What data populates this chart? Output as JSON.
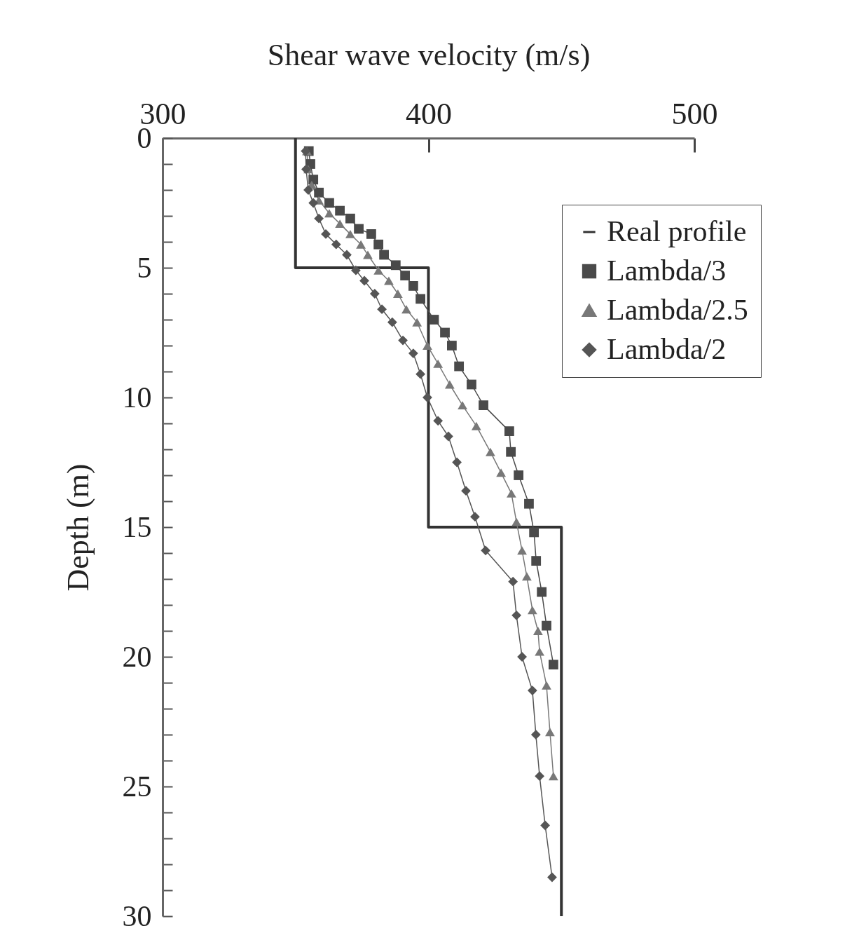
{
  "chart_data": {
    "type": "line",
    "xlabel": "Shear wave velocity (m/s)",
    "ylabel": "Depth (m)",
    "xlim": [
      300,
      500
    ],
    "xticks": [
      300,
      400,
      500
    ],
    "ylim": [
      30,
      0
    ],
    "yticks": [
      0,
      {
        "value": 1,
        "label": null
      },
      {
        "value": 2,
        "label": null
      },
      {
        "value": 3,
        "label": null
      },
      {
        "value": 4,
        "label": null
      },
      5,
      {
        "value": 6,
        "label": null
      },
      {
        "value": 7,
        "label": null
      },
      {
        "value": 8,
        "label": null
      },
      {
        "value": 9,
        "label": null
      },
      10,
      {
        "value": 11,
        "label": null
      },
      {
        "value": 12,
        "label": null
      },
      {
        "value": 13,
        "label": null
      },
      {
        "value": 14,
        "label": null
      },
      15,
      {
        "value": 16,
        "label": null
      },
      {
        "value": 17,
        "label": null
      },
      {
        "value": 18,
        "label": null
      },
      {
        "value": 19,
        "label": null
      },
      20,
      {
        "value": 21,
        "label": null
      },
      {
        "value": 22,
        "label": null
      },
      {
        "value": 23,
        "label": null
      },
      {
        "value": 24,
        "label": null
      },
      25,
      {
        "value": 26,
        "label": null
      },
      {
        "value": 27,
        "label": null
      },
      {
        "value": 28,
        "label": null
      },
      {
        "value": 29,
        "label": null
      },
      30
    ],
    "grid": false,
    "legend": "top right",
    "series": [
      {
        "name": "Real profile",
        "color": "#333333",
        "marker": "none",
        "x": [
          350,
          350,
          400,
          400,
          450,
          450
        ],
        "values": [
          0,
          5,
          5,
          15,
          15,
          30
        ]
      },
      {
        "name": "Lambda/3",
        "color": "#4a4a4a",
        "marker": "square",
        "x": [
          355,
          355.6,
          356.7,
          358.8,
          362.7,
          366.7,
          370.6,
          373.8,
          378.5,
          381.2,
          383.3,
          387.7,
          391.2,
          394.3,
          397,
          402.1,
          406.2,
          408.8,
          411.5,
          416.2,
          420.7,
          430.4,
          431,
          433.9,
          437.8,
          439.7,
          440.5,
          442.6,
          444.4,
          447
        ],
        "values": [
          0.5,
          1,
          1.6,
          2.1,
          2.5,
          2.8,
          3.1,
          3.5,
          3.7,
          4.1,
          4.5,
          4.9,
          5.3,
          5.7,
          6.2,
          7,
          7.5,
          8,
          8.8,
          9.5,
          10.3,
          11.3,
          12.1,
          13,
          14.1,
          15.2,
          16.3,
          17.5,
          18.8,
          20.3
        ]
      },
      {
        "name": "Lambda/2.5",
        "color": "#787878",
        "marker": "triangle",
        "x": [
          354.3,
          354.8,
          356.1,
          358.8,
          362.7,
          366.7,
          370.6,
          374.6,
          377.2,
          381.2,
          385.1,
          388.5,
          391.7,
          395.7,
          399.6,
          403.6,
          408,
          412.8,
          418,
          423.3,
          427.3,
          431.2,
          433.1,
          435.2,
          437,
          439.1,
          441.2,
          441.8,
          444.4,
          445.7,
          447
        ],
        "values": [
          0.5,
          1.2,
          1.8,
          2.4,
          2.9,
          3.3,
          3.7,
          4.1,
          4.5,
          5.1,
          5.5,
          6,
          6.6,
          7.1,
          8,
          8.7,
          9.5,
          10.3,
          11.1,
          12.1,
          12.9,
          13.7,
          14.8,
          15.9,
          16.9,
          18.2,
          19,
          19.8,
          21.1,
          22.9,
          24.6
        ]
      },
      {
        "name": "Lambda/2",
        "color": "#555555",
        "marker": "diamond",
        "x": [
          353.8,
          354,
          354.8,
          356.7,
          358.8,
          361.4,
          365.3,
          369.3,
          372.7,
          375.9,
          379.8,
          382.5,
          386.4,
          390.4,
          394.3,
          397,
          399.6,
          403.6,
          407.5,
          410.7,
          414.1,
          417.5,
          421.5,
          431.8,
          433.1,
          435.2,
          439.1,
          440.4,
          441.8,
          443.9,
          446.5
        ],
        "values": [
          0.5,
          1.2,
          2,
          2.5,
          3.1,
          3.7,
          4.1,
          4.5,
          5.1,
          5.5,
          6,
          6.6,
          7.1,
          7.8,
          8.3,
          9.1,
          10,
          10.9,
          11.5,
          12.5,
          13.6,
          14.6,
          15.9,
          17.1,
          18.4,
          20,
          21.3,
          23,
          24.6,
          26.5,
          28.5
        ]
      }
    ]
  }
}
